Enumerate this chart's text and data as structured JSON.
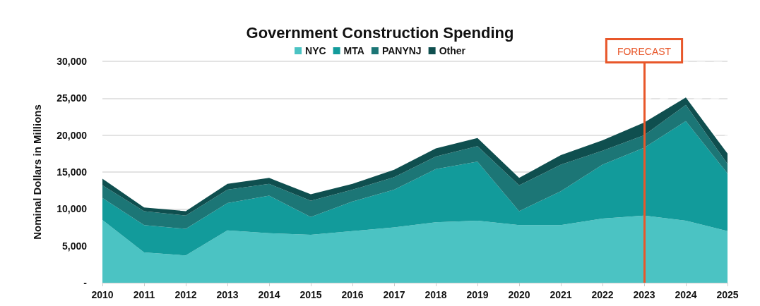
{
  "chart_data": {
    "type": "area",
    "title": "Government Construction Spending",
    "ylabel": "Nominal Dollars in Millions",
    "categories": [
      "2010",
      "2011",
      "2012",
      "2013",
      "2014",
      "2015",
      "2016",
      "2017",
      "2018",
      "2019",
      "2020",
      "2021",
      "2022",
      "2023",
      "2024",
      "2025"
    ],
    "series": [
      {
        "name": "NYC",
        "color": "#4bc3c3",
        "values": [
          8500,
          4100,
          3700,
          7100,
          6700,
          6500,
          7000,
          7500,
          8200,
          8400,
          7800,
          7800,
          8700,
          9100,
          8400,
          7000
        ]
      },
      {
        "name": "MTA",
        "color": "#129b9b",
        "values": [
          3000,
          3700,
          3600,
          3700,
          5100,
          2400,
          4000,
          5100,
          7200,
          8000,
          1900,
          4600,
          7300,
          9200,
          13500,
          7800
        ]
      },
      {
        "name": "PANYNJ",
        "color": "#1c7676",
        "values": [
          1700,
          1900,
          1800,
          1800,
          1600,
          2200,
          1600,
          1700,
          1700,
          2100,
          3500,
          3600,
          1900,
          1700,
          2200,
          1300
        ]
      },
      {
        "name": "Other",
        "color": "#0f4f4f",
        "values": [
          900,
          500,
          600,
          800,
          800,
          900,
          800,
          1000,
          1100,
          1100,
          1000,
          1300,
          1400,
          1700,
          1000,
          1400
        ]
      }
    ],
    "stacked": true,
    "ylim": [
      0,
      30000
    ],
    "yticks": [
      {
        "value": 0,
        "label": "-"
      },
      {
        "value": 5000,
        "label": "5,000"
      },
      {
        "value": 10000,
        "label": "10,000"
      },
      {
        "value": 15000,
        "label": "15,000"
      },
      {
        "value": 20000,
        "label": "20,000"
      },
      {
        "value": 25000,
        "label": "25,000"
      },
      {
        "value": 30000,
        "label": "30,000"
      }
    ],
    "ref_lines": [
      {
        "axis": "x",
        "value": "2023",
        "label": "FORECAST",
        "color": "#e8572a"
      }
    ],
    "bands": [
      {
        "axis": "x",
        "from": "2023",
        "to": "2025"
      }
    ],
    "grid": "y",
    "legend": "top"
  }
}
